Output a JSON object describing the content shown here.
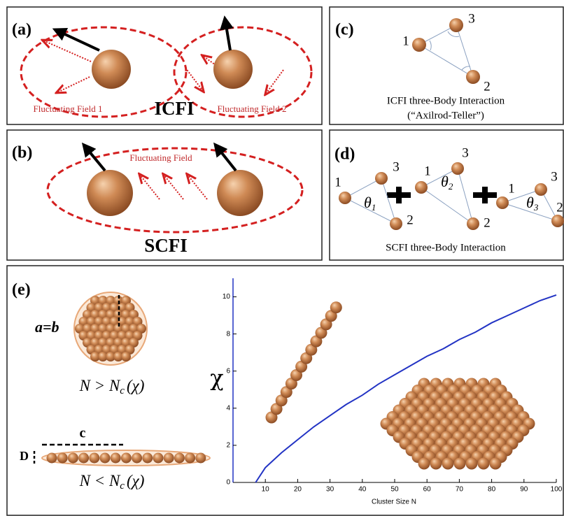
{
  "panels": {
    "a": {
      "label": "(a)",
      "title": "ICFI",
      "field_1": "Fluctuating Field 1",
      "field_2": "Fluctuating Field 2"
    },
    "b": {
      "label": "(b)",
      "title": "SCFI",
      "field": "Fluctuating Field"
    },
    "c": {
      "label": "(c)",
      "particles": [
        "1",
        "3",
        "2"
      ],
      "caption": "ICFI three-Body Interaction",
      "caption_2": "(“Axilrod-Teller”)"
    },
    "d": {
      "label": "(d)",
      "triangles": [
        {
          "particles": [
            "1",
            "3",
            "2"
          ],
          "angle": {
            "symbol": "θ",
            "sub": "1"
          }
        },
        {
          "particles": [
            "1",
            "3",
            "2"
          ],
          "angle": {
            "symbol": "θ",
            "sub": "2"
          }
        },
        {
          "particles": [
            "1",
            "3",
            "2"
          ],
          "angle": {
            "symbol": "θ",
            "sub": "3"
          }
        }
      ],
      "caption": "SCFI three-Body Interaction"
    },
    "e": {
      "label": "(e)",
      "compact": "a=b",
      "compact_condition": [
        "N > N",
        "c",
        "(χ)"
      ],
      "length": "c",
      "width": "D",
      "chain_condition": [
        "N < N",
        "c",
        "(χ)"
      ]
    }
  },
  "chart_data": {
    "type": "line",
    "x_label": "Cluster Size N",
    "y_label": "χ",
    "x": [
      7,
      10,
      15,
      20,
      25,
      30,
      35,
      40,
      45,
      50,
      55,
      60,
      65,
      70,
      75,
      80,
      85,
      90,
      95,
      100
    ],
    "values": [
      0,
      0.8,
      1.6,
      2.3,
      3.0,
      3.6,
      4.2,
      4.7,
      5.3,
      5.8,
      6.3,
      6.8,
      7.2,
      7.7,
      8.1,
      8.6,
      9.0,
      9.4,
      9.8,
      10.1
    ],
    "color": "#2233c4",
    "xlim": [
      0,
      100
    ],
    "xticks": [
      10,
      20,
      30,
      40,
      50,
      60,
      70,
      80,
      90,
      100
    ],
    "ylim": [
      0,
      11
    ],
    "yticks": [
      0,
      2,
      4,
      6,
      8,
      10
    ]
  }
}
